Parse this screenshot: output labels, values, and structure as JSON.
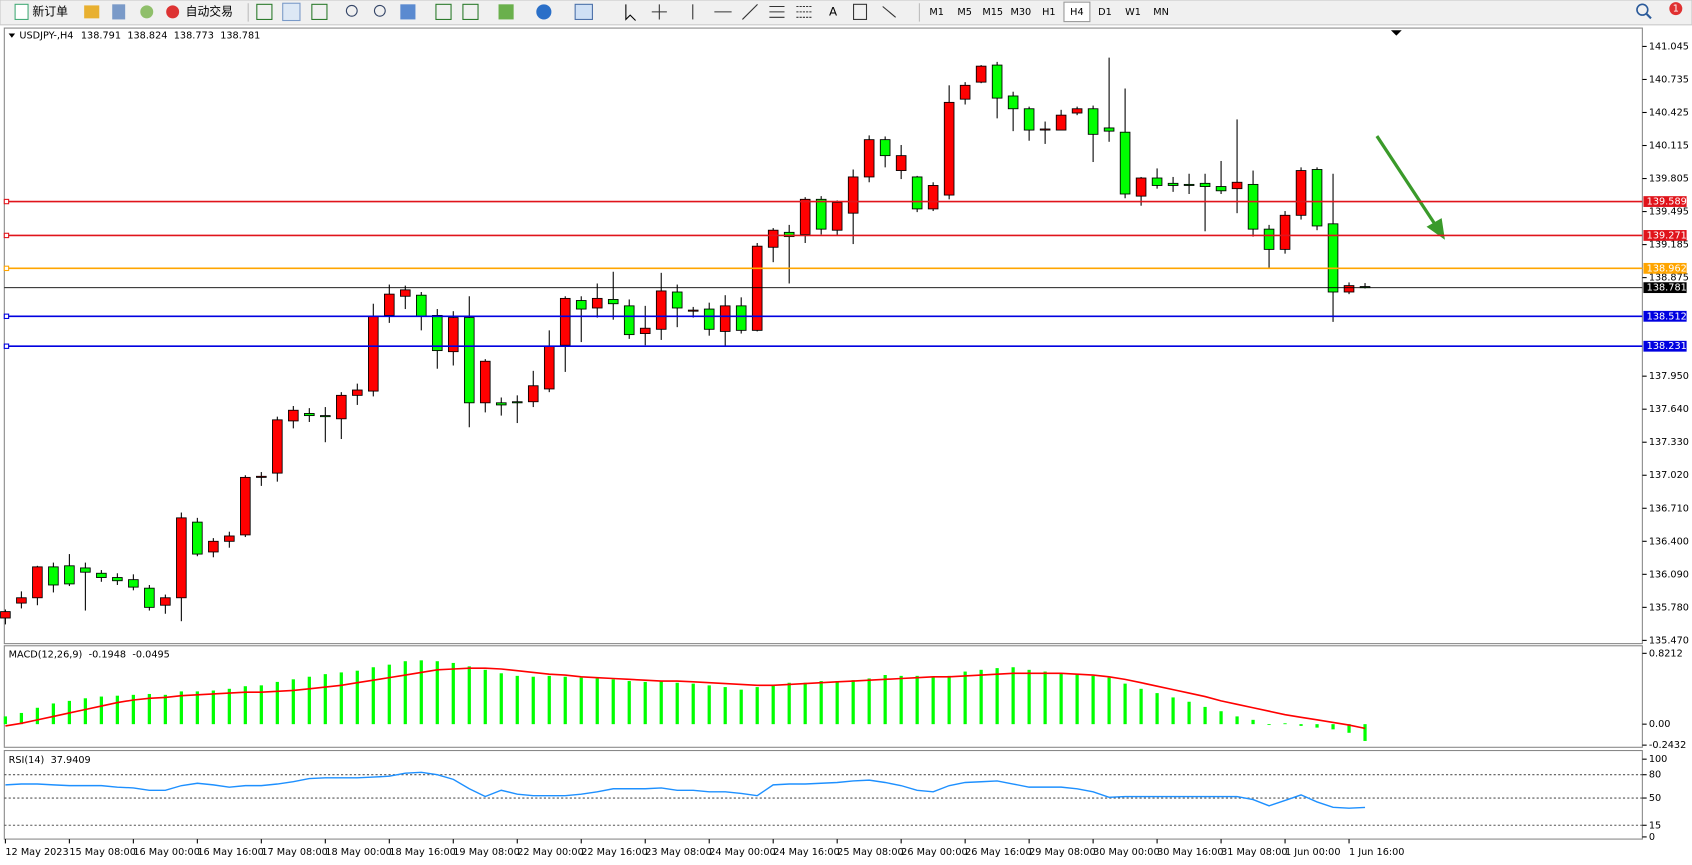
{
  "toolbar": {
    "new_order": "新订单",
    "auto_trading": "自动交易",
    "text_tool": "A",
    "timeframes": [
      "M1",
      "M5",
      "M15",
      "M30",
      "H1",
      "H4",
      "D1",
      "W1",
      "MN"
    ],
    "active_timeframe": "H4",
    "notifications": 1
  },
  "chart_data": [
    {
      "type": "candlestick",
      "title": "USDJPY-,H4",
      "up_color": "#ff0000",
      "down_color": "#00ff00",
      "categories": [
        "12 May 2023",
        null,
        null,
        null,
        "15 May 08:00",
        null,
        null,
        null,
        "16 May 00:00",
        null,
        null,
        null,
        "16 May 16:00",
        null,
        null,
        null,
        "17 May 08:00",
        null,
        null,
        null,
        "18 May 00:00",
        null,
        null,
        null,
        "18 May 16:00",
        null,
        null,
        null,
        "19 May 08:00",
        null,
        null,
        null,
        "22 May 00:00",
        null,
        null,
        null,
        "22 May 16:00",
        null,
        null,
        null,
        "23 May 08:00",
        null,
        null,
        null,
        "24 May 00:00",
        null,
        null,
        null,
        "24 May 16:00",
        null,
        null,
        null,
        "25 May 08:00",
        null,
        null,
        null,
        "26 May 00:00",
        null,
        null,
        null,
        "26 May 16:00",
        null,
        null,
        null,
        "29 May 08:00",
        null,
        null,
        null,
        "30 May 00:00",
        null,
        null,
        null,
        "30 May 16:00",
        null,
        null,
        null,
        "31 May 08:00",
        null,
        null,
        null,
        "1 Jun 00:00",
        null,
        null,
        null,
        "1 Jun 16:00",
        null
      ],
      "open": [
        135.68,
        135.82,
        135.87,
        136.16,
        136.17,
        136.15,
        136.1,
        136.06,
        136.04,
        135.96,
        135.8,
        135.87,
        136.58,
        136.3,
        136.4,
        136.46,
        137.0,
        137.04,
        137.53,
        137.6,
        137.58,
        137.55,
        137.77,
        137.81,
        138.52,
        138.7,
        138.71,
        138.52,
        138.18,
        138.5,
        137.7,
        137.7,
        137.71,
        137.71,
        137.83,
        138.24,
        138.66,
        138.59,
        138.67,
        138.61,
        138.35,
        138.39,
        138.74,
        138.56,
        138.58,
        138.37,
        138.61,
        138.38,
        139.16,
        139.3,
        139.28,
        139.61,
        139.32,
        139.48,
        139.82,
        140.17,
        139.88,
        139.82,
        139.52,
        139.65,
        140.55,
        140.71,
        140.87,
        140.58,
        140.46,
        140.26,
        140.26,
        140.42,
        140.46,
        140.28,
        140.24,
        139.64,
        139.81,
        139.76,
        139.75,
        139.76,
        139.73,
        139.71,
        139.75,
        139.33,
        139.14,
        139.46,
        139.89,
        139.38,
        138.74,
        138.791
      ],
      "high": [
        135.76,
        135.93,
        136.17,
        136.2,
        136.28,
        136.2,
        136.13,
        136.1,
        136.09,
        135.99,
        135.9,
        136.67,
        136.62,
        136.43,
        136.49,
        137.02,
        137.05,
        137.57,
        137.67,
        137.65,
        137.66,
        137.8,
        137.88,
        138.63,
        138.81,
        138.8,
        138.74,
        138.58,
        138.56,
        138.7,
        138.11,
        137.75,
        137.77,
        138.0,
        138.38,
        138.7,
        138.7,
        138.82,
        138.93,
        138.67,
        138.61,
        138.92,
        138.81,
        138.6,
        138.64,
        138.71,
        138.69,
        139.2,
        139.34,
        139.37,
        139.63,
        139.64,
        139.6,
        139.89,
        140.21,
        140.2,
        140.12,
        139.83,
        139.77,
        140.68,
        140.71,
        140.87,
        140.9,
        140.62,
        140.48,
        140.34,
        140.45,
        140.48,
        140.49,
        140.94,
        140.65,
        139.82,
        139.9,
        139.82,
        139.85,
        139.85,
        139.97,
        140.36,
        139.88,
        139.37,
        139.5,
        139.91,
        139.91,
        139.85,
        138.83,
        138.824
      ],
      "low": [
        135.62,
        135.77,
        135.8,
        135.92,
        135.98,
        135.75,
        136.02,
        135.99,
        135.94,
        135.75,
        135.72,
        135.65,
        136.26,
        136.25,
        136.34,
        136.44,
        136.92,
        136.96,
        137.46,
        137.52,
        137.33,
        137.36,
        137.68,
        137.76,
        138.45,
        138.58,
        138.38,
        138.02,
        138.05,
        137.47,
        137.61,
        137.58,
        137.51,
        137.66,
        137.8,
        137.99,
        138.27,
        138.5,
        138.48,
        138.3,
        138.24,
        138.29,
        138.41,
        138.5,
        138.33,
        138.23,
        138.35,
        138.37,
        139.02,
        138.82,
        139.2,
        139.28,
        139.27,
        139.19,
        139.77,
        139.91,
        139.8,
        139.49,
        139.5,
        139.61,
        140.5,
        140.7,
        140.37,
        140.25,
        140.16,
        140.13,
        140.26,
        140.4,
        139.96,
        140.15,
        139.62,
        139.55,
        139.71,
        139.68,
        139.66,
        139.31,
        139.66,
        139.48,
        139.26,
        138.96,
        139.1,
        139.42,
        139.32,
        138.46,
        138.72,
        138.773
      ],
      "close": [
        135.74,
        135.87,
        136.16,
        135.99,
        136.0,
        136.11,
        136.06,
        136.03,
        135.97,
        135.78,
        135.87,
        136.62,
        136.28,
        136.4,
        136.45,
        137.0,
        137.01,
        137.54,
        137.63,
        137.58,
        137.57,
        137.77,
        137.82,
        138.51,
        138.72,
        138.76,
        138.51,
        138.19,
        138.5,
        137.7,
        138.09,
        137.68,
        137.7,
        137.86,
        138.23,
        138.68,
        138.58,
        138.68,
        138.63,
        138.34,
        138.4,
        138.75,
        138.59,
        138.57,
        138.39,
        138.61,
        138.38,
        139.17,
        139.32,
        139.26,
        139.61,
        139.33,
        139.58,
        139.82,
        140.17,
        140.02,
        140.02,
        139.52,
        139.74,
        140.52,
        140.68,
        140.86,
        140.56,
        140.46,
        140.26,
        140.27,
        140.4,
        140.46,
        140.22,
        140.25,
        139.66,
        139.81,
        139.74,
        139.74,
        139.74,
        139.73,
        139.69,
        139.77,
        139.33,
        139.14,
        139.46,
        139.88,
        139.36,
        138.74,
        138.8,
        138.781
      ],
      "ylim": [
        135.47,
        141.045
      ],
      "yticks": [
        141.045,
        140.735,
        140.425,
        140.115,
        139.805,
        139.495,
        139.185,
        138.875,
        {
          "value": 137.95,
          "label": "137.950"
        },
        {
          "value": 137.64,
          "label": "137.640"
        },
        {
          "value": 137.33,
          "label": "137.330"
        },
        {
          "value": 137.02,
          "label": "137.020"
        },
        {
          "value": 136.71,
          "label": "136.710"
        },
        {
          "value": 136.4,
          "label": "136.400"
        },
        {
          "value": 136.09,
          "label": "136.090"
        },
        {
          "value": 135.78,
          "label": "135.780"
        },
        {
          "value": 135.47,
          "label": "135.470"
        }
      ],
      "hlines": [
        {
          "value": 139.589,
          "color": "#e0141b"
        },
        {
          "value": 139.271,
          "color": "#e0141b"
        },
        {
          "value": 138.962,
          "color": "#ffa500"
        },
        {
          "value": 138.512,
          "color": "#0000e0"
        },
        {
          "value": 138.231,
          "color": "#0000e0"
        }
      ],
      "grid": false
    },
    {
      "type": "macd",
      "title": "MACD(12,26,9)",
      "bars": {
        "color": "#00ff00",
        "values": [
          0.09,
          0.13,
          0.19,
          0.24,
          0.27,
          0.3,
          0.32,
          0.33,
          0.34,
          0.35,
          0.34,
          0.38,
          0.38,
          0.39,
          0.41,
          0.44,
          0.45,
          0.49,
          0.52,
          0.55,
          0.58,
          0.6,
          0.62,
          0.66,
          0.69,
          0.73,
          0.74,
          0.73,
          0.71,
          0.67,
          0.63,
          0.59,
          0.56,
          0.55,
          0.56,
          0.55,
          0.54,
          0.53,
          0.52,
          0.5,
          0.49,
          0.5,
          0.48,
          0.47,
          0.45,
          0.43,
          0.4,
          0.43,
          0.46,
          0.48,
          0.48,
          0.5,
          0.5,
          0.51,
          0.53,
          0.57,
          0.56,
          0.56,
          0.55,
          0.56,
          0.61,
          0.63,
          0.65,
          0.66,
          0.63,
          0.61,
          0.59,
          0.58,
          0.56,
          0.54,
          0.47,
          0.41,
          0.36,
          0.31,
          0.26,
          0.2,
          0.15,
          0.09,
          0.05,
          -0.01,
          0.01,
          -0.02,
          -0.04,
          -0.06,
          -0.1,
          -0.1948
        ]
      },
      "line": {
        "color": "#ff0000",
        "values": [
          -0.02,
          0.01,
          0.05,
          0.09,
          0.13,
          0.17,
          0.21,
          0.25,
          0.28,
          0.3,
          0.31,
          0.33,
          0.34,
          0.35,
          0.36,
          0.37,
          0.37,
          0.38,
          0.39,
          0.41,
          0.43,
          0.45,
          0.48,
          0.51,
          0.54,
          0.57,
          0.6,
          0.63,
          0.64,
          0.65,
          0.65,
          0.64,
          0.62,
          0.6,
          0.58,
          0.57,
          0.55,
          0.54,
          0.53,
          0.52,
          0.51,
          0.5,
          0.5,
          0.49,
          0.48,
          0.47,
          0.46,
          0.45,
          0.45,
          0.46,
          0.47,
          0.48,
          0.49,
          0.5,
          0.51,
          0.52,
          0.53,
          0.54,
          0.55,
          0.55,
          0.56,
          0.57,
          0.58,
          0.59,
          0.59,
          0.59,
          0.59,
          0.58,
          0.57,
          0.55,
          0.52,
          0.48,
          0.44,
          0.4,
          0.36,
          0.32,
          0.27,
          0.23,
          0.19,
          0.15,
          0.11,
          0.08,
          0.05,
          0.02,
          -0.01,
          -0.0495
        ]
      },
      "ylim": [
        -0.2432,
        0.8212
      ],
      "yticks": [
        0.8212,
        {
          "value": 0,
          "label": "0.00"
        },
        -0.2432
      ]
    },
    {
      "type": "line",
      "title": "RSI(14)",
      "color": "#1e90ff",
      "values": [
        67,
        68,
        68,
        67,
        66,
        66,
        66,
        64,
        63,
        60,
        60,
        66,
        69,
        67,
        64,
        66,
        66,
        68,
        71,
        75,
        76,
        76,
        76,
        77,
        78,
        82,
        83,
        80,
        74,
        62,
        52,
        60,
        55,
        53,
        53,
        53,
        55,
        58,
        62,
        62,
        62,
        63,
        60,
        60,
        58,
        58,
        56,
        53,
        67,
        68,
        68,
        69,
        70,
        72,
        73,
        70,
        66,
        60,
        58,
        66,
        70,
        71,
        72,
        68,
        64,
        64,
        64,
        62,
        58,
        51,
        52,
        52,
        52,
        52,
        52,
        52,
        52,
        52,
        48,
        40,
        47,
        54,
        45,
        38,
        37,
        37.9409
      ],
      "ylim": [
        0,
        100
      ],
      "yticks": [
        100,
        80,
        50,
        15,
        0
      ]
    }
  ]
}
